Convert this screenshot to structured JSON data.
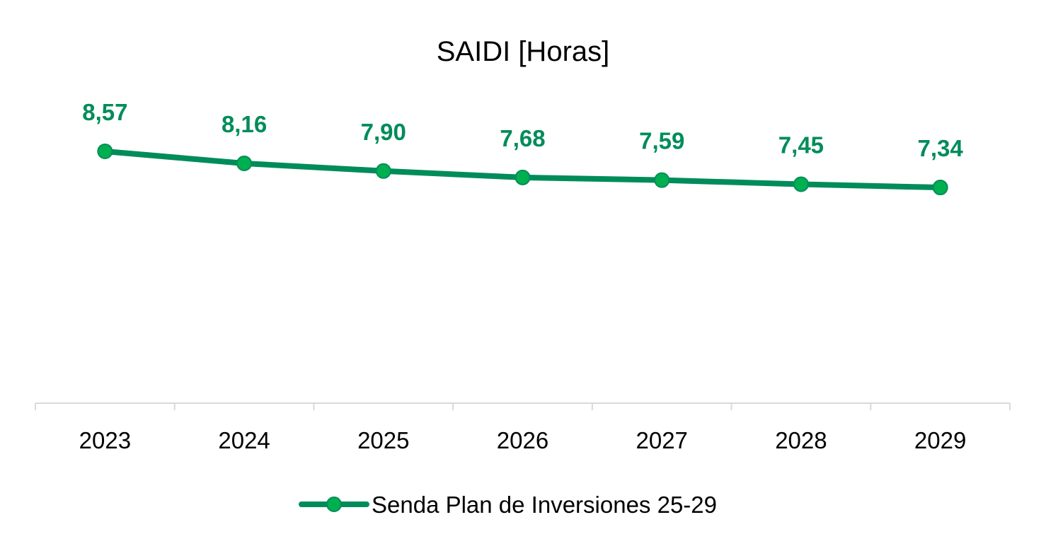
{
  "chart_data": {
    "type": "line",
    "title": "SAIDI [Horas]",
    "xlabel": "",
    "ylabel": "",
    "categories": [
      "2023",
      "2024",
      "2025",
      "2026",
      "2027",
      "2028",
      "2029"
    ],
    "series": [
      {
        "name": "Senda Plan de Inversiones 25-29",
        "values": [
          8.57,
          8.16,
          7.9,
          7.68,
          7.59,
          7.45,
          7.34
        ],
        "labels": [
          "8,57",
          "8,16",
          "7,90",
          "7,68",
          "7,59",
          "7,45",
          "7,34"
        ],
        "color": "#008C5A",
        "marker_color": "#00B050"
      }
    ],
    "ylim": [
      0,
      11
    ],
    "grid": false,
    "y_axis_visible": false,
    "legend_position": "bottom",
    "data_labels": true
  }
}
